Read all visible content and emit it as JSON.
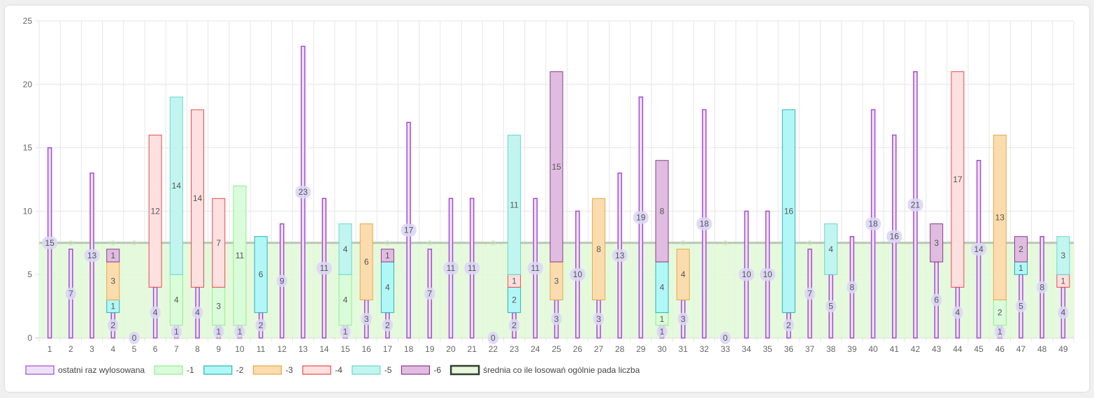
{
  "chart_data": {
    "type": "bar",
    "stacked": true,
    "categories": [
      "1",
      "2",
      "3",
      "4",
      "5",
      "6",
      "7",
      "8",
      "9",
      "10",
      "11",
      "12",
      "13",
      "14",
      "15",
      "16",
      "17",
      "18",
      "19",
      "20",
      "21",
      "22",
      "23",
      "24",
      "25",
      "26",
      "27",
      "28",
      "29",
      "30",
      "31",
      "32",
      "33",
      "34",
      "35",
      "36",
      "37",
      "38",
      "39",
      "40",
      "41",
      "42",
      "43",
      "44",
      "45",
      "46",
      "47",
      "48",
      "49"
    ],
    "ylim": [
      0,
      25
    ],
    "yticks": [
      "0",
      "5",
      "10",
      "15",
      "20",
      "25"
    ],
    "grid": true,
    "legend_position": "bottom-left",
    "series": [
      {
        "name": "ostatni raz wylosowana",
        "stroke": "#a64ad6",
        "fill": "#ede2f7",
        "values": [
          15,
          7,
          13,
          2,
          0,
          4,
          1,
          4,
          1,
          1,
          2,
          9,
          23,
          11,
          1,
          3,
          2,
          17,
          7,
          11,
          11,
          0,
          2,
          11,
          3,
          10,
          3,
          13,
          19,
          1,
          3,
          18,
          0,
          10,
          10,
          2,
          7,
          5,
          8,
          18,
          16,
          21,
          6,
          4,
          14,
          1,
          5,
          8,
          4
        ]
      },
      {
        "name": "-1",
        "stroke": "#8df08d",
        "fill": "#dafcda",
        "values": [
          0,
          0,
          0,
          0,
          0,
          0,
          4,
          0,
          3,
          11,
          0,
          0,
          0,
          0,
          4,
          0,
          0,
          0,
          0,
          0,
          0,
          0,
          0,
          0,
          0,
          0,
          0,
          0,
          0,
          1,
          0,
          0,
          0,
          0,
          0,
          0,
          0,
          0,
          0,
          0,
          0,
          0,
          0,
          0,
          0,
          2,
          0,
          0,
          0
        ]
      },
      {
        "name": "-2",
        "stroke": "#2ab3b3",
        "fill": "#b2f7f7",
        "values": [
          0,
          0,
          0,
          1,
          0,
          0,
          0,
          0,
          0,
          0,
          6,
          0,
          0,
          0,
          0,
          0,
          4,
          0,
          0,
          0,
          0,
          0,
          2,
          0,
          0,
          0,
          0,
          0,
          0,
          4,
          0,
          0,
          0,
          0,
          0,
          16,
          0,
          0,
          0,
          0,
          0,
          0,
          0,
          0,
          0,
          0,
          1,
          0,
          0
        ]
      },
      {
        "name": "-3",
        "stroke": "#e6a94a",
        "fill": "#fbdcae",
        "values": [
          0,
          0,
          0,
          3,
          0,
          0,
          0,
          0,
          0,
          0,
          0,
          0,
          0,
          0,
          0,
          6,
          0,
          0,
          0,
          0,
          0,
          0,
          0,
          0,
          3,
          0,
          8,
          0,
          0,
          0,
          4,
          0,
          0,
          0,
          0,
          0,
          0,
          0,
          0,
          0,
          0,
          0,
          0,
          0,
          0,
          13,
          0,
          0,
          0
        ]
      },
      {
        "name": "-4",
        "stroke": "#e84c4c",
        "fill": "#fde0e0",
        "values": [
          0,
          0,
          0,
          0,
          0,
          12,
          0,
          14,
          7,
          0,
          0,
          0,
          0,
          0,
          0,
          0,
          0,
          0,
          0,
          0,
          0,
          0,
          1,
          0,
          0,
          0,
          0,
          0,
          0,
          0,
          0,
          0,
          0,
          0,
          0,
          0,
          0,
          0,
          0,
          0,
          0,
          0,
          0,
          17,
          0,
          0,
          0,
          0,
          1
        ]
      },
      {
        "name": "-5",
        "stroke": "#66d9cc",
        "fill": "#c2f5f0",
        "values": [
          0,
          0,
          0,
          0,
          0,
          0,
          14,
          0,
          0,
          0,
          0,
          0,
          0,
          0,
          4,
          0,
          0,
          0,
          0,
          0,
          0,
          0,
          11,
          0,
          0,
          0,
          0,
          0,
          0,
          0,
          0,
          0,
          0,
          0,
          0,
          0,
          0,
          4,
          0,
          0,
          0,
          0,
          0,
          0,
          0,
          0,
          0,
          0,
          3
        ]
      },
      {
        "name": "-6",
        "stroke": "#8a3b8a",
        "fill": "#e0bde0",
        "values": [
          0,
          0,
          0,
          1,
          0,
          0,
          0,
          0,
          0,
          0,
          0,
          0,
          0,
          0,
          0,
          0,
          1,
          0,
          0,
          0,
          0,
          0,
          0,
          0,
          15,
          0,
          0,
          0,
          0,
          8,
          0,
          0,
          0,
          0,
          0,
          0,
          0,
          0,
          0,
          0,
          0,
          0,
          3,
          0,
          0,
          0,
          2,
          0,
          0
        ]
      }
    ],
    "average": {
      "name": "średnia co ile losowań ogólnie pada liczba",
      "value": 7.5,
      "stroke": "#2f3f2f",
      "fill": "#e1f8d6"
    }
  }
}
